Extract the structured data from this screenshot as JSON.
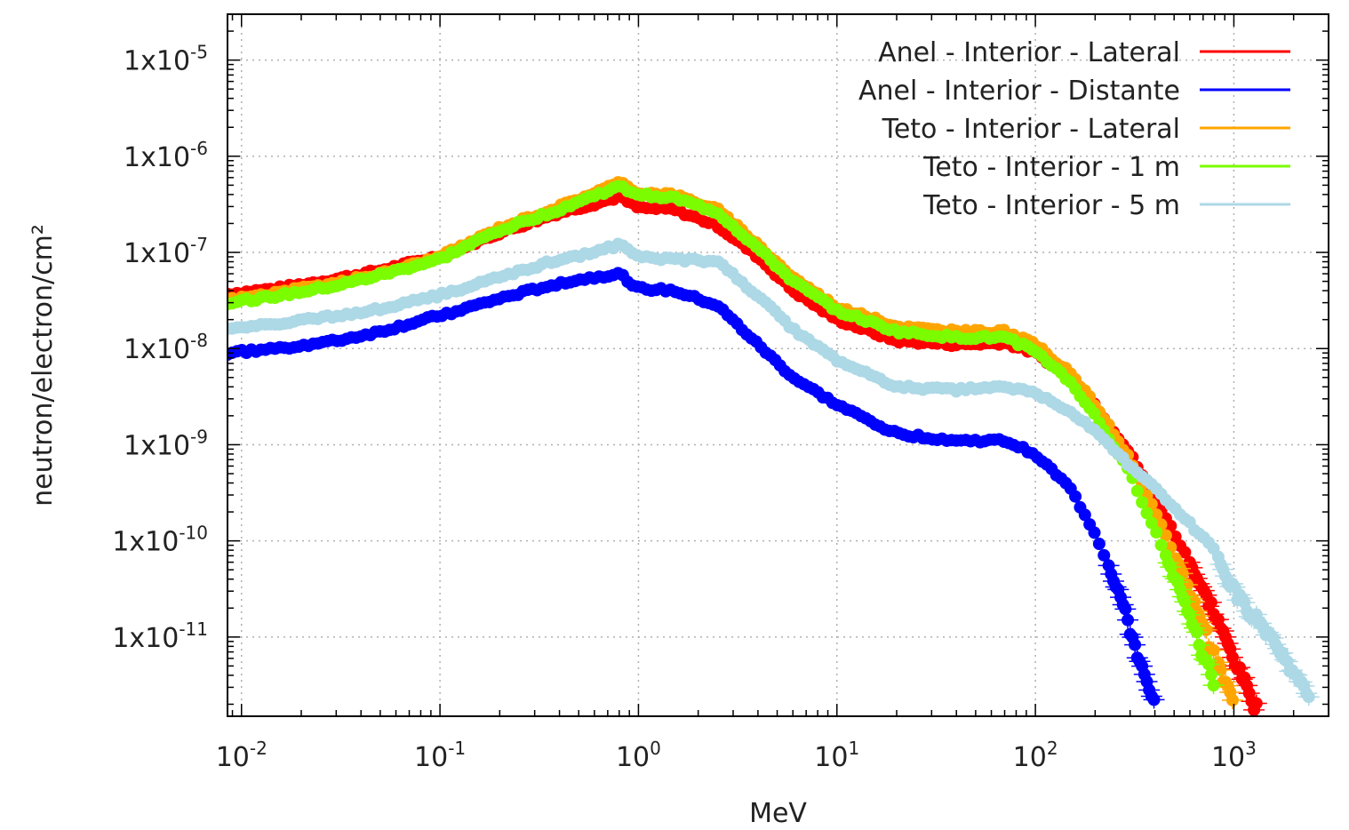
{
  "chart_data": {
    "type": "scatter",
    "title": "",
    "xlabel": "MeV",
    "ylabel": "neutron/electron/cm²",
    "xscale": "log",
    "yscale": "log",
    "xlim": [
      0.0085,
      3000
    ],
    "ylim": [
      1.5e-12,
      3e-05
    ],
    "grid": true,
    "legend_position": "top-right",
    "x_ticks": [
      {
        "value": 0.01,
        "base": "10",
        "exp": "-2"
      },
      {
        "value": 0.1,
        "base": "10",
        "exp": "-1"
      },
      {
        "value": 1,
        "base": "10",
        "exp": "0"
      },
      {
        "value": 10,
        "base": "10",
        "exp": "1"
      },
      {
        "value": 100,
        "base": "10",
        "exp": "2"
      },
      {
        "value": 1000,
        "base": "10",
        "exp": "3"
      }
    ],
    "y_ticks": [
      {
        "value": 1e-05,
        "base": "1x10",
        "exp": "-5"
      },
      {
        "value": 1e-06,
        "base": "1x10",
        "exp": "-6"
      },
      {
        "value": 1e-07,
        "base": "1x10",
        "exp": "-7"
      },
      {
        "value": 1e-08,
        "base": "1x10",
        "exp": "-8"
      },
      {
        "value": 1e-09,
        "base": "1x10",
        "exp": "-9"
      },
      {
        "value": 1e-10,
        "base": "1x10",
        "exp": "-10"
      },
      {
        "value": 1e-11,
        "base": "1x10",
        "exp": "-11"
      }
    ],
    "series": [
      {
        "name": "Anel - Interior - Lateral",
        "color": "#ff0000",
        "x": [
          0.0085,
          0.015,
          0.03,
          0.05,
          0.1,
          0.2,
          0.4,
          0.6,
          0.8,
          1.0,
          1.5,
          2.5,
          4,
          6,
          10,
          20,
          40,
          70,
          100,
          150,
          200,
          300,
          400,
          600,
          800,
          1000,
          1300
        ],
        "y": [
          3.7e-08,
          4.2e-08,
          5.3e-08,
          6.5e-08,
          9.2e-08,
          1.6e-07,
          2.6e-07,
          3.2e-07,
          3.8e-07,
          2.9e-07,
          2.8e-07,
          1.9e-07,
          9e-08,
          4e-08,
          2e-08,
          1.2e-08,
          1.1e-08,
          1.15e-08,
          9e-09,
          5e-09,
          2.6e-09,
          8e-10,
          2.8e-10,
          6e-11,
          1.7e-11,
          6e-12,
          1.8e-12
        ]
      },
      {
        "name": "Anel - Interior - Distante",
        "color": "#0000ff",
        "x": [
          0.0085,
          0.015,
          0.03,
          0.05,
          0.1,
          0.2,
          0.4,
          0.6,
          0.8,
          1.0,
          1.5,
          2.5,
          4,
          6,
          10,
          20,
          40,
          70,
          100,
          150,
          200,
          250,
          300,
          350,
          400
        ],
        "y": [
          9e-09,
          1e-08,
          1.2e-08,
          1.5e-08,
          2.2e-08,
          3.3e-08,
          4.8e-08,
          5.5e-08,
          6e-08,
          4.2e-08,
          4e-08,
          2.8e-08,
          1.1e-08,
          5e-09,
          2.6e-09,
          1.3e-09,
          1.1e-09,
          1.1e-09,
          8e-10,
          3.5e-10,
          1.2e-10,
          4e-11,
          1.2e-11,
          4e-12,
          1.8e-12
        ]
      },
      {
        "name": "Teto - Interior - Lateral",
        "color": "#ffa500",
        "x": [
          0.0085,
          0.015,
          0.03,
          0.05,
          0.1,
          0.2,
          0.4,
          0.6,
          0.8,
          1.0,
          1.5,
          2.5,
          4,
          6,
          10,
          20,
          40,
          70,
          100,
          150,
          200,
          300,
          400,
          600,
          800,
          1000
        ],
        "y": [
          3.2e-08,
          3.8e-08,
          4.8e-08,
          6e-08,
          9e-08,
          1.8e-07,
          3e-07,
          4.2e-07,
          5.3e-07,
          4.2e-07,
          4e-07,
          2.8e-07,
          1.2e-07,
          5.5e-08,
          2.7e-08,
          1.7e-08,
          1.5e-08,
          1.5e-08,
          1.1e-08,
          5.5e-09,
          2.6e-09,
          7e-10,
          2e-10,
          3e-11,
          6e-12,
          2e-12
        ]
      },
      {
        "name": "Teto - Interior - 1 m",
        "color": "#7cfc00",
        "x": [
          0.0085,
          0.015,
          0.03,
          0.05,
          0.1,
          0.2,
          0.4,
          0.6,
          0.8,
          1.0,
          1.5,
          2.5,
          4,
          6,
          10,
          20,
          40,
          70,
          100,
          150,
          200,
          300,
          400,
          600,
          800
        ],
        "y": [
          3e-08,
          3.5e-08,
          4.5e-08,
          5.8e-08,
          8.5e-08,
          1.7e-07,
          2.8e-07,
          3.9e-07,
          4.8e-07,
          4e-07,
          3.7e-07,
          2.6e-07,
          1.1e-07,
          5e-08,
          2.5e-08,
          1.5e-08,
          1.3e-08,
          1.3e-08,
          9.5e-09,
          4.5e-09,
          2e-09,
          5e-10,
          1.3e-10,
          1.8e-11,
          3e-12
        ]
      },
      {
        "name": "Teto - Interior - 5 m",
        "color": "#add8e6",
        "x": [
          0.0085,
          0.015,
          0.03,
          0.05,
          0.1,
          0.2,
          0.4,
          0.6,
          0.8,
          1.0,
          1.5,
          2.5,
          4,
          6,
          10,
          20,
          40,
          70,
          100,
          150,
          200,
          300,
          400,
          600,
          800,
          1000,
          1500,
          2000,
          2400
        ],
        "y": [
          1.6e-08,
          1.8e-08,
          2.2e-08,
          2.6e-08,
          3.6e-08,
          5.5e-08,
          8.5e-08,
          1e-07,
          1.2e-07,
          9e-08,
          8.5e-08,
          8e-08,
          3.5e-08,
          1.6e-08,
          7.5e-09,
          4e-09,
          3.7e-09,
          4e-09,
          3.4e-09,
          2.2e-09,
          1.4e-09,
          6e-10,
          3.5e-10,
          1.5e-10,
          8e-11,
          3e-11,
          1e-11,
          4e-12,
          2.5e-12
        ]
      }
    ]
  }
}
